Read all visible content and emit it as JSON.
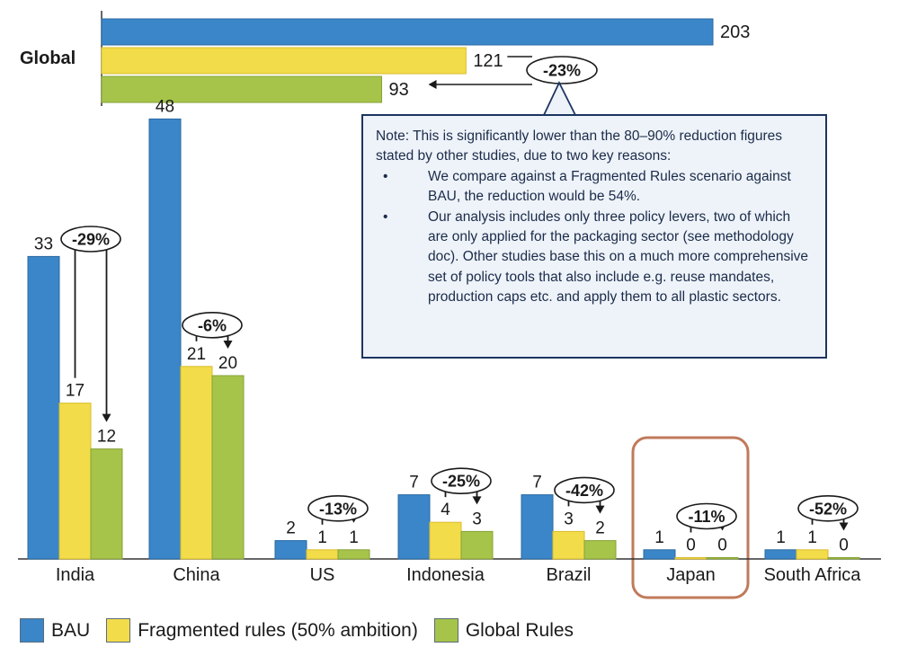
{
  "chart_data": {
    "type": "bar",
    "global": {
      "label": "Global",
      "values": [
        203,
        121,
        93
      ],
      "change_label": "-23%"
    },
    "categories": [
      "India",
      "China",
      "US",
      "Indonesia",
      "Brazil",
      "Japan",
      "South Africa"
    ],
    "series": [
      {
        "name": "BAU",
        "values": [
          33,
          48,
          2,
          7,
          7,
          1,
          1
        ]
      },
      {
        "name": "Fragmented rules (50% ambition)",
        "values": [
          17,
          21,
          1,
          4,
          3,
          0,
          1
        ]
      },
      {
        "name": "Global Rules",
        "values": [
          12,
          20,
          1,
          3,
          2,
          0,
          0
        ]
      }
    ],
    "value_labels": [
      [
        "33",
        "48",
        "2",
        "7",
        "7",
        "1",
        "1"
      ],
      [
        "17",
        "21",
        "1",
        "4",
        "3",
        "0",
        "1"
      ],
      [
        "12",
        "20",
        "1",
        "3",
        "2",
        "0",
        "0"
      ]
    ],
    "change_labels": [
      "-29%",
      "-6%",
      "-13%",
      "-25%",
      "-42%",
      "-11%",
      "-52%"
    ],
    "highlighted_category": "Japan",
    "colors": {
      "BAU": "#3a86c8",
      "Fragmented": "#f3dc4a",
      "Global": "#a6c44a",
      "highlight_box": "#c07a5a",
      "note_border": "#1d3461",
      "note_bg": "#eef3f9"
    },
    "grid": false,
    "legend_position": "bottom-left"
  },
  "note": {
    "intro": "Note: This is significantly lower than the 80–90% reduction figures stated by other studies, due to two key reasons:",
    "bullets": [
      "We compare against a Fragmented Rules scenario against BAU, the reduction would be 54%.",
      "Our analysis includes only three policy levers, two of which are only applied for the packaging sector (see methodology doc). Other studies base this on a much more comprehensive set of policy tools that also include e.g. reuse mandates, production caps etc. and apply them to all plastic sectors."
    ]
  },
  "legend": {
    "bau": "BAU",
    "fragmented": "Fragmented rules (50% ambition)",
    "global": "Global Rules"
  }
}
